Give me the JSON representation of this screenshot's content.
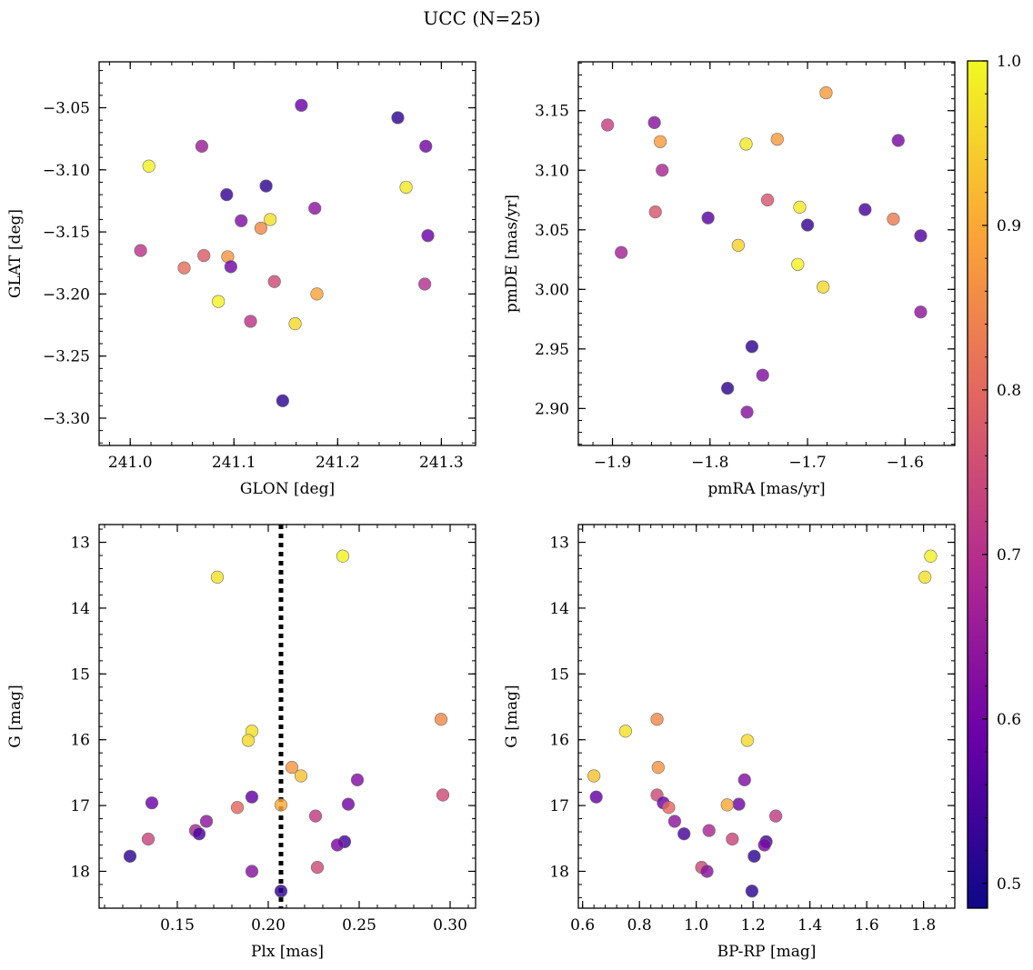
{
  "figure": {
    "title": "UCC (N=25)"
  },
  "colorbar": {
    "min": 0.485,
    "max": 1.0,
    "ticks": [
      0.5,
      0.6,
      0.7,
      0.8,
      0.9,
      1.0
    ],
    "tick_labels": [
      "0.5",
      "0.6",
      "0.7",
      "0.8",
      "0.9",
      "1.0"
    ],
    "colormap": "plasma",
    "stops": [
      "#0d0887",
      "#6a00a8",
      "#b12a90",
      "#e16462",
      "#fca636",
      "#f0f921"
    ]
  },
  "chart_data": [
    {
      "type": "scatter",
      "xlabel": "GLON [deg]",
      "ylabel": "GLAT [deg]",
      "xlim": [
        240.97,
        241.333
      ],
      "ylim": [
        -3.322,
        -3.013
      ],
      "xticks": [
        241.0,
        241.1,
        241.2,
        241.3
      ],
      "xtick_labels": [
        "241.0",
        "241.1",
        "241.2",
        "241.3"
      ],
      "yticks": [
        -3.05,
        -3.1,
        -3.15,
        -3.2,
        -3.25,
        -3.3
      ],
      "ytick_labels": [
        "−3.05",
        "−3.10",
        "−3.15",
        "−3.20",
        "−3.25",
        "−3.30"
      ],
      "points": [
        {
          "x": 241.018,
          "y": -3.097,
          "c": 0.99
        },
        {
          "x": 241.069,
          "y": -3.081,
          "c": 0.66
        },
        {
          "x": 241.093,
          "y": -3.12,
          "c": 0.53
        },
        {
          "x": 241.131,
          "y": -3.113,
          "c": 0.52
        },
        {
          "x": 241.165,
          "y": -3.048,
          "c": 0.59
        },
        {
          "x": 241.258,
          "y": -3.058,
          "c": 0.52
        },
        {
          "x": 241.285,
          "y": -3.081,
          "c": 0.6
        },
        {
          "x": 241.266,
          "y": -3.114,
          "c": 0.98
        },
        {
          "x": 241.107,
          "y": -3.141,
          "c": 0.62
        },
        {
          "x": 241.135,
          "y": -3.14,
          "c": 0.97
        },
        {
          "x": 241.126,
          "y": -3.147,
          "c": 0.85
        },
        {
          "x": 241.178,
          "y": -3.131,
          "c": 0.64
        },
        {
          "x": 241.287,
          "y": -3.153,
          "c": 0.59
        },
        {
          "x": 241.01,
          "y": -3.165,
          "c": 0.71
        },
        {
          "x": 241.052,
          "y": -3.179,
          "c": 0.81
        },
        {
          "x": 241.071,
          "y": -3.169,
          "c": 0.78
        },
        {
          "x": 241.094,
          "y": -3.17,
          "c": 0.87
        },
        {
          "x": 241.097,
          "y": -3.178,
          "c": 0.6
        },
        {
          "x": 241.139,
          "y": -3.19,
          "c": 0.75
        },
        {
          "x": 241.18,
          "y": -3.2,
          "c": 0.89
        },
        {
          "x": 241.284,
          "y": -3.192,
          "c": 0.7
        },
        {
          "x": 241.085,
          "y": -3.206,
          "c": 0.99
        },
        {
          "x": 241.116,
          "y": -3.222,
          "c": 0.71
        },
        {
          "x": 241.159,
          "y": -3.224,
          "c": 0.96
        },
        {
          "x": 241.147,
          "y": -3.286,
          "c": 0.52
        }
      ]
    },
    {
      "type": "scatter",
      "xlabel": "pmRA [mas/yr]",
      "ylabel": "pmDE [mas/yr]",
      "xlim": [
        -1.935,
        -1.549
      ],
      "ylim": [
        2.869,
        3.191
      ],
      "xticks": [
        -1.9,
        -1.8,
        -1.7,
        -1.6
      ],
      "xtick_labels": [
        "−1.9",
        "−1.8",
        "−1.7",
        "−1.6"
      ],
      "yticks": [
        3.15,
        3.1,
        3.05,
        3.0,
        2.95,
        2.9
      ],
      "ytick_labels": [
        "3.15",
        "3.10",
        "3.05",
        "3.00",
        "2.95",
        "2.90"
      ],
      "points": [
        {
          "x": -1.905,
          "y": 3.138,
          "c": 0.73
        },
        {
          "x": -1.857,
          "y": 3.14,
          "c": 0.63
        },
        {
          "x": -1.851,
          "y": 3.124,
          "c": 0.88
        },
        {
          "x": -1.849,
          "y": 3.1,
          "c": 0.68
        },
        {
          "x": -1.763,
          "y": 3.122,
          "c": 0.98
        },
        {
          "x": -1.731,
          "y": 3.126,
          "c": 0.88
        },
        {
          "x": -1.681,
          "y": 3.165,
          "c": 0.88
        },
        {
          "x": -1.607,
          "y": 3.125,
          "c": 0.61
        },
        {
          "x": -1.856,
          "y": 3.065,
          "c": 0.77
        },
        {
          "x": -1.802,
          "y": 3.06,
          "c": 0.57
        },
        {
          "x": -1.741,
          "y": 3.075,
          "c": 0.77
        },
        {
          "x": -1.708,
          "y": 3.069,
          "c": 0.98
        },
        {
          "x": -1.7,
          "y": 3.054,
          "c": 0.53
        },
        {
          "x": -1.641,
          "y": 3.067,
          "c": 0.55
        },
        {
          "x": -1.612,
          "y": 3.059,
          "c": 0.83
        },
        {
          "x": -1.584,
          "y": 3.045,
          "c": 0.56
        },
        {
          "x": -1.891,
          "y": 3.031,
          "c": 0.67
        },
        {
          "x": -1.771,
          "y": 3.037,
          "c": 0.95
        },
        {
          "x": -1.71,
          "y": 3.021,
          "c": 0.99
        },
        {
          "x": -1.684,
          "y": 3.002,
          "c": 0.96
        },
        {
          "x": -1.584,
          "y": 2.981,
          "c": 0.64
        },
        {
          "x": -1.757,
          "y": 2.952,
          "c": 0.52
        },
        {
          "x": -1.746,
          "y": 2.928,
          "c": 0.62
        },
        {
          "x": -1.782,
          "y": 2.917,
          "c": 0.52
        },
        {
          "x": -1.762,
          "y": 2.897,
          "c": 0.63
        }
      ]
    },
    {
      "type": "scatter",
      "xlabel": "Plx [mas]",
      "ylabel": "G [mag]",
      "xlim": [
        0.107,
        0.314
      ],
      "ylim": [
        18.56,
        12.73
      ],
      "xticks": [
        0.15,
        0.2,
        0.25,
        0.3
      ],
      "xtick_labels": [
        "0.15",
        "0.20",
        "0.25",
        "0.30"
      ],
      "yticks": [
        13,
        14,
        15,
        16,
        17,
        18
      ],
      "ytick_labels": [
        "13",
        "14",
        "15",
        "16",
        "17",
        "18"
      ],
      "vline": {
        "x": 0.207,
        "style": "dotted"
      },
      "points": [
        {
          "x": 0.241,
          "y": 13.21,
          "c": 0.99
        },
        {
          "x": 0.172,
          "y": 13.53,
          "c": 0.97
        },
        {
          "x": 0.295,
          "y": 15.69,
          "c": 0.85
        },
        {
          "x": 0.191,
          "y": 15.87,
          "c": 0.97
        },
        {
          "x": 0.189,
          "y": 16.01,
          "c": 0.96
        },
        {
          "x": 0.213,
          "y": 16.42,
          "c": 0.87
        },
        {
          "x": 0.218,
          "y": 16.55,
          "c": 0.93
        },
        {
          "x": 0.249,
          "y": 16.61,
          "c": 0.62
        },
        {
          "x": 0.296,
          "y": 16.84,
          "c": 0.75
        },
        {
          "x": 0.191,
          "y": 16.87,
          "c": 0.58
        },
        {
          "x": 0.136,
          "y": 16.96,
          "c": 0.59
        },
        {
          "x": 0.244,
          "y": 16.98,
          "c": 0.6
        },
        {
          "x": 0.207,
          "y": 16.99,
          "c": 0.9
        },
        {
          "x": 0.183,
          "y": 17.03,
          "c": 0.8
        },
        {
          "x": 0.226,
          "y": 17.16,
          "c": 0.72
        },
        {
          "x": 0.166,
          "y": 17.24,
          "c": 0.64
        },
        {
          "x": 0.16,
          "y": 17.38,
          "c": 0.68
        },
        {
          "x": 0.162,
          "y": 17.43,
          "c": 0.55
        },
        {
          "x": 0.134,
          "y": 17.51,
          "c": 0.74
        },
        {
          "x": 0.242,
          "y": 17.55,
          "c": 0.54
        },
        {
          "x": 0.238,
          "y": 17.6,
          "c": 0.61
        },
        {
          "x": 0.124,
          "y": 17.77,
          "c": 0.52
        },
        {
          "x": 0.227,
          "y": 17.94,
          "c": 0.75
        },
        {
          "x": 0.191,
          "y": 18.0,
          "c": 0.63
        },
        {
          "x": 0.207,
          "y": 18.3,
          "c": 0.52
        }
      ]
    },
    {
      "type": "scatter",
      "xlabel": "BP-RP [mag]",
      "ylabel": "G [mag]",
      "xlim": [
        0.585,
        1.91
      ],
      "ylim": [
        18.56,
        12.73
      ],
      "xticks": [
        0.6,
        0.8,
        1.0,
        1.2,
        1.4,
        1.6,
        1.8
      ],
      "xtick_labels": [
        "0.6",
        "0.8",
        "1.0",
        "1.2",
        "1.4",
        "1.6",
        "1.8"
      ],
      "yticks": [
        13,
        14,
        15,
        16,
        17,
        18
      ],
      "ytick_labels": [
        "13",
        "14",
        "15",
        "16",
        "17",
        "18"
      ],
      "points": [
        {
          "x": 1.825,
          "y": 13.21,
          "c": 0.99
        },
        {
          "x": 1.805,
          "y": 13.53,
          "c": 0.97
        },
        {
          "x": 0.862,
          "y": 15.69,
          "c": 0.85
        },
        {
          "x": 0.751,
          "y": 15.87,
          "c": 0.97
        },
        {
          "x": 1.18,
          "y": 16.01,
          "c": 0.96
        },
        {
          "x": 0.866,
          "y": 16.42,
          "c": 0.87
        },
        {
          "x": 0.64,
          "y": 16.55,
          "c": 0.93
        },
        {
          "x": 1.17,
          "y": 16.61,
          "c": 0.62
        },
        {
          "x": 0.862,
          "y": 16.84,
          "c": 0.75
        },
        {
          "x": 0.648,
          "y": 16.87,
          "c": 0.58
        },
        {
          "x": 0.884,
          "y": 16.96,
          "c": 0.59
        },
        {
          "x": 1.15,
          "y": 16.98,
          "c": 0.6
        },
        {
          "x": 1.109,
          "y": 16.99,
          "c": 0.9
        },
        {
          "x": 0.903,
          "y": 17.03,
          "c": 0.8
        },
        {
          "x": 1.28,
          "y": 17.16,
          "c": 0.72
        },
        {
          "x": 0.924,
          "y": 17.24,
          "c": 0.64
        },
        {
          "x": 1.045,
          "y": 17.38,
          "c": 0.68
        },
        {
          "x": 0.957,
          "y": 17.43,
          "c": 0.55
        },
        {
          "x": 1.127,
          "y": 17.51,
          "c": 0.74
        },
        {
          "x": 1.246,
          "y": 17.55,
          "c": 0.54
        },
        {
          "x": 1.24,
          "y": 17.6,
          "c": 0.61
        },
        {
          "x": 1.204,
          "y": 17.77,
          "c": 0.52
        },
        {
          "x": 1.019,
          "y": 17.94,
          "c": 0.75
        },
        {
          "x": 1.038,
          "y": 18.0,
          "c": 0.63
        },
        {
          "x": 1.196,
          "y": 18.3,
          "c": 0.52
        }
      ]
    }
  ]
}
